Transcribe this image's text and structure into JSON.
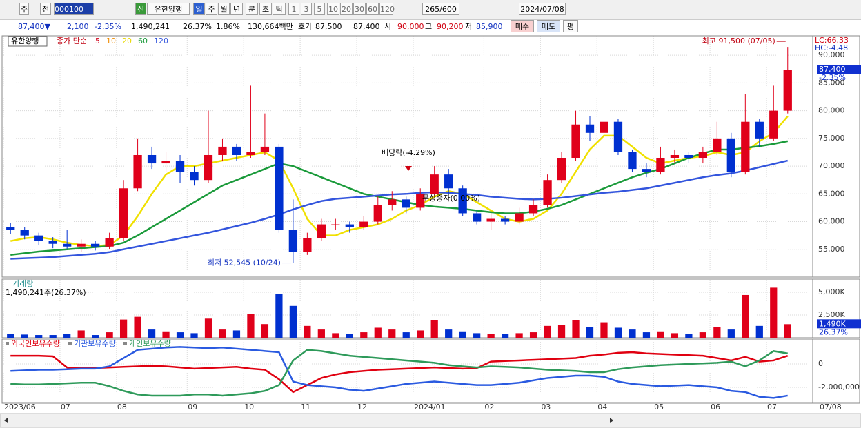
{
  "toolbar": {
    "items": [
      "주",
      "전",
      "000100",
      "신",
      "유한양행",
      "일",
      "주",
      "월",
      "년",
      "분",
      "초",
      "틱",
      "1",
      "3",
      "5",
      "10",
      "20",
      "30",
      "60",
      "120",
      "265/600",
      "2024/07/08"
    ]
  },
  "quote": {
    "items": [
      "87,400▼",
      "2,100",
      "-2.35%",
      "1,490,241",
      "26.37%",
      "1.86%",
      "130,664백만",
      "호가",
      "87,500",
      "87,400",
      "시",
      "90,000",
      "고",
      "90,200",
      "저",
      "85,900",
      "매수",
      "매도",
      "평"
    ]
  },
  "chart_data": [
    {
      "type": "candlestick",
      "name": "유한양행",
      "legend_title": "종가 단순",
      "categories": [
        "2023/06",
        null,
        null,
        null,
        "07",
        null,
        null,
        null,
        "08",
        null,
        null,
        null,
        null,
        "09",
        null,
        null,
        null,
        "10",
        null,
        null,
        null,
        "11",
        null,
        null,
        null,
        "12",
        null,
        null,
        null,
        "2024/01",
        null,
        null,
        null,
        null,
        "02",
        null,
        null,
        null,
        "03",
        null,
        null,
        null,
        "04",
        null,
        null,
        null,
        "05",
        null,
        null,
        null,
        "06",
        null,
        null,
        null,
        "07",
        null
      ],
      "last_date": "07/08",
      "candles": [
        [
          59000,
          59800,
          57800,
          58500
        ],
        [
          58500,
          59000,
          56800,
          57500
        ],
        [
          57500,
          58000,
          55800,
          56500
        ],
        [
          56500,
          57200,
          55200,
          56000
        ],
        [
          56000,
          58500,
          55000,
          55500
        ],
        [
          55500,
          56800,
          54500,
          56000
        ],
        [
          56000,
          56500,
          54800,
          55500
        ],
        [
          55500,
          58000,
          55000,
          57000
        ],
        [
          57000,
          67500,
          56500,
          66000
        ],
        [
          66000,
          75000,
          65500,
          72000
        ],
        [
          72000,
          73500,
          69500,
          70500
        ],
        [
          70500,
          72500,
          69000,
          71000
        ],
        [
          71000,
          72000,
          67000,
          69000
        ],
        [
          69000,
          70000,
          66500,
          67500
        ],
        [
          67500,
          80000,
          67000,
          72000
        ],
        [
          72000,
          75000,
          71000,
          73500
        ],
        [
          73500,
          74000,
          71000,
          72000
        ],
        [
          72000,
          84500,
          71500,
          72500
        ],
        [
          72500,
          79500,
          72000,
          73500
        ],
        [
          73500,
          74000,
          58000,
          58500
        ],
        [
          58500,
          64000,
          52545,
          54500
        ],
        [
          54500,
          58000,
          54000,
          57000
        ],
        [
          57000,
          60500,
          56500,
          59500
        ],
        [
          59500,
          60500,
          58500,
          59500
        ],
        [
          59500,
          60000,
          58000,
          59000
        ],
        [
          59000,
          61000,
          58500,
          60000
        ],
        [
          60000,
          64500,
          59500,
          63000
        ],
        [
          63000,
          65500,
          62000,
          64000
        ],
        [
          64000,
          64500,
          61500,
          62500
        ],
        [
          62500,
          66000,
          62000,
          65000
        ],
        [
          65000,
          70000,
          64500,
          68500
        ],
        [
          68500,
          69500,
          65000,
          66000
        ],
        [
          66000,
          66500,
          61000,
          61500
        ],
        [
          61500,
          62000,
          59500,
          60000
        ],
        [
          60000,
          61500,
          58500,
          60500
        ],
        [
          60500,
          61000,
          59500,
          60000
        ],
        [
          60000,
          62500,
          59500,
          61500
        ],
        [
          61500,
          64000,
          61000,
          63000
        ],
        [
          63000,
          68500,
          62500,
          67500
        ],
        [
          67500,
          72500,
          67000,
          71500
        ],
        [
          71500,
          80000,
          71000,
          77500
        ],
        [
          77500,
          79000,
          74500,
          76000
        ],
        [
          76000,
          83500,
          75500,
          78000
        ],
        [
          78000,
          78500,
          72000,
          72500
        ],
        [
          72500,
          73000,
          69000,
          69500
        ],
        [
          69500,
          70500,
          68000,
          69000
        ],
        [
          69000,
          73500,
          68500,
          71500
        ],
        [
          71500,
          73000,
          70500,
          72000
        ],
        [
          72000,
          72500,
          70500,
          71500
        ],
        [
          71500,
          73500,
          70500,
          72500
        ],
        [
          72500,
          78000,
          72000,
          75000
        ],
        [
          75000,
          76000,
          68000,
          69000
        ],
        [
          69000,
          83000,
          68500,
          78000
        ],
        [
          78000,
          78500,
          73500,
          75000
        ],
        [
          75000,
          84500,
          74500,
          80000
        ],
        [
          80000,
          91500,
          79500,
          87400
        ]
      ],
      "up_color": "#e0001a",
      "down_color": "#0030d0",
      "legend": [
        {
          "name": "5",
          "color": "#d0001a"
        },
        {
          "name": "10",
          "color": "#f08c00"
        },
        {
          "name": "20",
          "color": "#e8d800"
        },
        {
          "name": "60",
          "color": "#1a9a3a"
        },
        {
          "name": "120",
          "color": "#3355dd"
        }
      ],
      "series": [
        {
          "name": "20",
          "color": "#f0e000",
          "values": [
            56500,
            57000,
            57200,
            56800,
            56200,
            55800,
            55600,
            55800,
            57500,
            61000,
            65000,
            68500,
            70000,
            70000,
            70500,
            71000,
            71500,
            72000,
            72500,
            71000,
            66000,
            60500,
            57500,
            57500,
            58500,
            59000,
            59500,
            60500,
            62000,
            63000,
            64500,
            65500,
            65000,
            63500,
            62000,
            60500,
            60000,
            60500,
            62000,
            65000,
            69000,
            73000,
            75500,
            75500,
            73500,
            71500,
            70500,
            71000,
            71500,
            71800,
            72500,
            72000,
            72500,
            74500,
            76000,
            79000
          ]
        },
        {
          "name": "60",
          "color": "#1a9a3a",
          "values": [
            54000,
            54300,
            54600,
            54800,
            55000,
            55200,
            55400,
            55600,
            56200,
            57500,
            59000,
            60500,
            62000,
            63500,
            65000,
            66500,
            67500,
            68500,
            69500,
            70500,
            70000,
            69000,
            68000,
            67000,
            66000,
            65000,
            64500,
            64000,
            63500,
            63000,
            62700,
            62500,
            62300,
            62000,
            61700,
            61500,
            61500,
            61800,
            62300,
            63000,
            64000,
            65000,
            66000,
            67000,
            68000,
            68800,
            69500,
            70500,
            71500,
            72300,
            73000,
            73000,
            73300,
            73600,
            74000,
            74500
          ]
        },
        {
          "name": "120",
          "color": "#3355dd",
          "values": [
            53300,
            53400,
            53500,
            53600,
            53800,
            54000,
            54200,
            54500,
            55000,
            55500,
            56000,
            56500,
            57000,
            57500,
            58000,
            58600,
            59200,
            59800,
            60500,
            61300,
            62200,
            63000,
            63700,
            64100,
            64300,
            64500,
            64700,
            64900,
            65000,
            65200,
            65300,
            65200,
            65000,
            64800,
            64500,
            64300,
            64100,
            64000,
            64100,
            64300,
            64600,
            64900,
            65200,
            65400,
            65700,
            66000,
            66500,
            67000,
            67500,
            68000,
            68400,
            68700,
            69200,
            69800,
            70400,
            71000
          ]
        }
      ],
      "ylim": [
        50000,
        93500
      ],
      "yticks": [
        {
          "value": 55000,
          "label": "55,000"
        },
        {
          "value": 60000,
          "label": "60,000"
        },
        {
          "value": 65000,
          "label": "65,000"
        },
        {
          "value": 70000,
          "label": "70,000"
        },
        {
          "value": 75000,
          "label": "75,000"
        },
        {
          "value": 80000,
          "label": "80,000"
        },
        {
          "value": 85000,
          "label": "85,000"
        },
        {
          "value": 90000,
          "label": "90,000"
        }
      ],
      "grid": true,
      "max_label": "최고 91,500 (07/05)",
      "min_label": "최저 52,545 (10/24)",
      "events": [
        "배당락(-4.29%)",
        "무상증자(0.00%)"
      ],
      "lc": "LC:66.33",
      "hc": "HC:-4.48",
      "last_label": "87,400",
      "last_change": "-2.35%"
    },
    {
      "type": "bar",
      "title": "거래량",
      "subtitle": "1,490,241주(26.37%)",
      "color": "#0030d0",
      "values": [
        400000,
        350000,
        300000,
        300000,
        450000,
        800000,
        300000,
        600000,
        2000000,
        2300000,
        900000,
        700000,
        600000,
        500000,
        2100000,
        900000,
        800000,
        2600000,
        1500000,
        4800000,
        3500000,
        1300000,
        900000,
        500000,
        400000,
        600000,
        1100000,
        900000,
        600000,
        800000,
        1900000,
        900000,
        700000,
        500000,
        400000,
        400000,
        500000,
        600000,
        1300000,
        1400000,
        1900000,
        1200000,
        1700000,
        1100000,
        900000,
        600000,
        700000,
        500000,
        400000,
        600000,
        1200000,
        900000,
        4700000,
        1300000,
        5500000,
        1490241
      ],
      "ylim": [
        0,
        6440000
      ],
      "yticks": [
        {
          "value": 2500000,
          "label": "2,500K"
        },
        {
          "value": 5000000,
          "label": "5,000K"
        }
      ],
      "last_label": "1,490K",
      "last_pct": "26.37%"
    },
    {
      "type": "line",
      "series": [
        {
          "name": "외국인보유수량",
          "color": "#e00010",
          "values": [
            700000,
            700000,
            700000,
            650000,
            -300000,
            -350000,
            -350000,
            -300000,
            -250000,
            -200000,
            -150000,
            -200000,
            -300000,
            -400000,
            -350000,
            -300000,
            -250000,
            -400000,
            -500000,
            -1300000,
            -2400000,
            -1800000,
            -1200000,
            -900000,
            -700000,
            -600000,
            -500000,
            -450000,
            -400000,
            -350000,
            -300000,
            -350000,
            -400000,
            -350000,
            200000,
            250000,
            300000,
            350000,
            400000,
            450000,
            500000,
            700000,
            800000,
            950000,
            1000000,
            900000,
            850000,
            800000,
            750000,
            700000,
            500000,
            300000,
            600000,
            200000,
            300000,
            700000
          ]
        },
        {
          "name": "기관보유수량",
          "color": "#2a5ae0",
          "values": [
            -600000,
            -550000,
            -500000,
            -500000,
            -450000,
            -400000,
            -400000,
            -200000,
            500000,
            1200000,
            1300000,
            1400000,
            1450000,
            1400000,
            1350000,
            1400000,
            1300000,
            1200000,
            1100000,
            1000000,
            -1500000,
            -1800000,
            -1900000,
            -2000000,
            -2200000,
            -2300000,
            -2100000,
            -1900000,
            -1700000,
            -1600000,
            -1500000,
            -1600000,
            -1700000,
            -1800000,
            -1800000,
            -1700000,
            -1600000,
            -1400000,
            -1200000,
            -1100000,
            -1000000,
            -1000000,
            -1100000,
            -1500000,
            -1700000,
            -1800000,
            -1900000,
            -1850000,
            -1800000,
            -1900000,
            -2000000,
            -2300000,
            -2400000,
            -2800000,
            -2900000,
            -2700000
          ]
        },
        {
          "name": "개인보유수량",
          "color": "#2e9a5a",
          "values": [
            -1700000,
            -1750000,
            -1750000,
            -1700000,
            -1650000,
            -1600000,
            -1600000,
            -1900000,
            -2300000,
            -2600000,
            -2700000,
            -2700000,
            -2700000,
            -2600000,
            -2600000,
            -2700000,
            -2600000,
            -2500000,
            -2300000,
            -1800000,
            300000,
            1200000,
            1100000,
            900000,
            700000,
            600000,
            500000,
            400000,
            300000,
            200000,
            100000,
            -100000,
            -200000,
            -300000,
            -200000,
            -250000,
            -300000,
            -400000,
            -500000,
            -550000,
            -600000,
            -700000,
            -700000,
            -450000,
            -300000,
            -200000,
            -100000,
            -50000,
            0,
            50000,
            100000,
            200000,
            -200000,
            300000,
            1100000,
            900000
          ]
        }
      ],
      "ylim": [
        -3350000,
        2120000
      ],
      "yticks": [
        0,
        {
          "value": -2000000,
          "label": "-2,000,000"
        }
      ]
    }
  ]
}
